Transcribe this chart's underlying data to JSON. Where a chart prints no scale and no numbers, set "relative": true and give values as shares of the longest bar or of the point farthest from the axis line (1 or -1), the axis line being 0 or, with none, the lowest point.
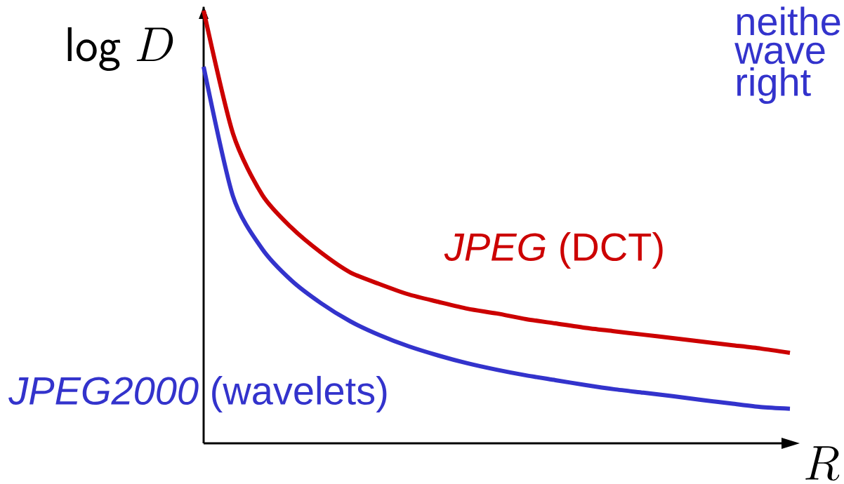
{
  "chart_data": {
    "type": "line",
    "relative": true,
    "xlabel": "R",
    "ylabel": "\\mathsf{log}\\ D",
    "categories": [
      null,
      null,
      null,
      null,
      null,
      null,
      null,
      null,
      null,
      null,
      null,
      null,
      null,
      null,
      null,
      null,
      null,
      null,
      null,
      null,
      null
    ],
    "series": [
      {
        "name": "*JPEG* (DCT)",
        "color": "#cc0000",
        "values": [
          1.0,
          0.716,
          0.574,
          0.498,
          0.441,
          0.395,
          0.368,
          0.344,
          0.327,
          0.311,
          0.3,
          0.287,
          0.277,
          0.267,
          0.259,
          0.251,
          0.243,
          0.235,
          0.227,
          0.219,
          0.209
        ]
      },
      {
        "name": "*JPEG2000* (wavelets)",
        "color": "#3333cc",
        "values": [
          0.87,
          0.571,
          0.449,
          0.376,
          0.324,
          0.282,
          0.25,
          0.224,
          0.203,
          0.185,
          0.17,
          0.157,
          0.146,
          0.135,
          0.125,
          0.117,
          0.109,
          0.1,
          0.092,
          0.084,
          0.08
        ]
      }
    ],
    "annotations": [
      "neithe",
      "wave",
      "right"
    ]
  }
}
